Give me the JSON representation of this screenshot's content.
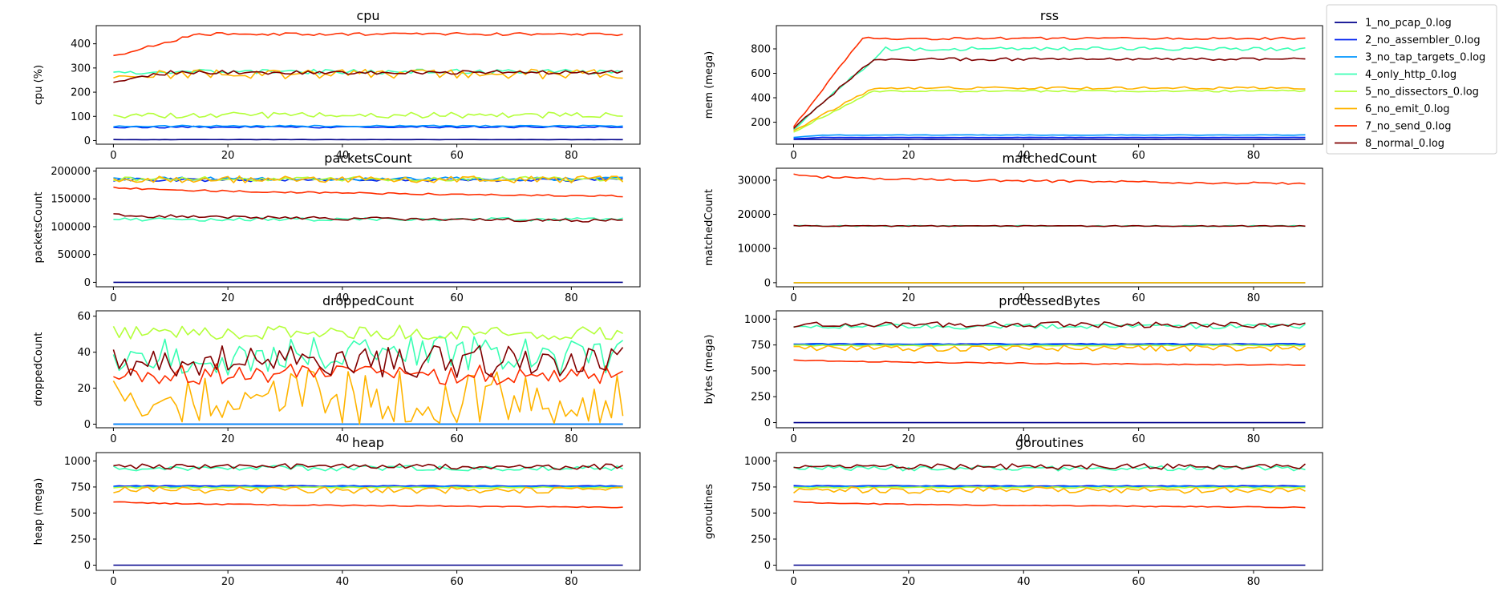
{
  "legend": {
    "placement": "upper-right-outside",
    "entries": [
      "1_no_pcap_0.log",
      "2_no_assembler_0.log",
      "3_no_tap_targets_0.log",
      "4_only_http_0.log",
      "5_no_dissectors_0.log",
      "6_no_emit_0.log",
      "7_no_send_0.log",
      "8_normal_0.log"
    ]
  },
  "colors": {
    "1_no_pcap_0.log": "#00008b",
    "2_no_assembler_0.log": "#0022f0",
    "3_no_tap_targets_0.log": "#0096ff",
    "4_only_http_0.log": "#3affb4",
    "5_no_dissectors_0.log": "#b4ff3a",
    "6_no_emit_0.log": "#ffb400",
    "7_no_send_0.log": "#ff2e00",
    "8_normal_0.log": "#800000"
  },
  "chart_data": [
    {
      "type": "line",
      "title": "cpu",
      "ylabel": "cpu (%)",
      "xlim": [
        -3,
        92
      ],
      "ylim": [
        -15,
        475
      ],
      "xticks": [
        0,
        20,
        40,
        60,
        80
      ],
      "yticks": [
        0,
        100,
        200,
        300,
        400
      ],
      "n_points": 90,
      "series": [
        {
          "name": "1_no_pcap_0.log",
          "kind": "flat",
          "level": 4,
          "noise": 0.5
        },
        {
          "name": "2_no_assembler_0.log",
          "kind": "flat",
          "level": 56,
          "noise": 4
        },
        {
          "name": "3_no_tap_targets_0.log",
          "kind": "flat",
          "level": 60,
          "noise": 3
        },
        {
          "name": "4_only_http_0.log",
          "kind": "flat",
          "level": 285,
          "noise": 10
        },
        {
          "name": "5_no_dissectors_0.log",
          "kind": "flat",
          "level": 105,
          "noise": 12
        },
        {
          "name": "6_no_emit_0.log",
          "kind": "flat",
          "level": 275,
          "noise": 20
        },
        {
          "name": "7_no_send_0.log",
          "kind": "ramp",
          "start": 350,
          "level": 440,
          "ramp": 15,
          "noise": 6
        },
        {
          "name": "8_normal_0.log",
          "kind": "ramp",
          "start": 245,
          "level": 282,
          "ramp": 10,
          "noise": 8
        }
      ]
    },
    {
      "type": "line",
      "title": "rss",
      "ylabel": "mem (mega)",
      "xlim": [
        -3,
        92
      ],
      "ylim": [
        20,
        990
      ],
      "xticks": [
        0,
        20,
        40,
        60,
        80
      ],
      "yticks": [
        200,
        400,
        600,
        800
      ],
      "n_points": 90,
      "series": [
        {
          "name": "1_no_pcap_0.log",
          "kind": "flat",
          "level": 60,
          "noise": 0.5
        },
        {
          "name": "2_no_assembler_0.log",
          "kind": "ramp",
          "start": 65,
          "level": 75,
          "ramp": 5,
          "noise": 1
        },
        {
          "name": "3_no_tap_targets_0.log",
          "kind": "ramp",
          "start": 75,
          "level": 95,
          "ramp": 5,
          "noise": 2
        },
        {
          "name": "4_only_http_0.log",
          "kind": "ramp",
          "start": 150,
          "level": 800,
          "ramp": 16,
          "noise": 15
        },
        {
          "name": "5_no_dissectors_0.log",
          "kind": "ramp",
          "start": 120,
          "level": 455,
          "ramp": 14,
          "noise": 8
        },
        {
          "name": "6_no_emit_0.log",
          "kind": "ramp",
          "start": 130,
          "level": 480,
          "ramp": 14,
          "noise": 10
        },
        {
          "name": "7_no_send_0.log",
          "kind": "ramp",
          "start": 165,
          "level": 885,
          "ramp": 12,
          "noise": 10
        },
        {
          "name": "8_normal_0.log",
          "kind": "ramp",
          "start": 160,
          "level": 715,
          "ramp": 14,
          "noise": 12
        }
      ]
    },
    {
      "type": "line",
      "title": "packetsCount",
      "ylabel": "packetsCount",
      "xlim": [
        -3,
        92
      ],
      "ylim": [
        -8000,
        205000
      ],
      "xticks": [
        0,
        20,
        40,
        60,
        80
      ],
      "yticks": [
        0,
        50000,
        100000,
        150000,
        200000
      ],
      "n_points": 90,
      "series": [
        {
          "name": "1_no_pcap_0.log",
          "kind": "flat",
          "level": 0,
          "noise": 0
        },
        {
          "name": "2_no_assembler_0.log",
          "kind": "flat",
          "level": 184000,
          "noise": 3000
        },
        {
          "name": "3_no_tap_targets_0.log",
          "kind": "flat",
          "level": 186000,
          "noise": 3000
        },
        {
          "name": "4_only_http_0.log",
          "kind": "flat",
          "level": 113000,
          "noise": 3000
        },
        {
          "name": "5_no_dissectors_0.log",
          "kind": "flat",
          "level": 186000,
          "noise": 4000
        },
        {
          "name": "6_no_emit_0.log",
          "kind": "flat",
          "level": 185000,
          "noise": 6000
        },
        {
          "name": "7_no_send_0.log",
          "kind": "trend",
          "start": 172000,
          "level": 155000,
          "noise": 1500
        },
        {
          "name": "8_normal_0.log",
          "kind": "trend",
          "start": 122000,
          "level": 111000,
          "noise": 3000
        }
      ]
    },
    {
      "type": "line",
      "title": "matchedCount",
      "ylabel": "matchedCount",
      "xlim": [
        -3,
        92
      ],
      "ylim": [
        -1200,
        33500
      ],
      "xticks": [
        0,
        20,
        40,
        60,
        80
      ],
      "yticks": [
        0,
        10000,
        20000,
        30000
      ],
      "n_points": 90,
      "series": [
        {
          "name": "1_no_pcap_0.log",
          "kind": "flat",
          "level": 0,
          "noise": 0
        },
        {
          "name": "2_no_assembler_0.log",
          "kind": "flat",
          "level": 0,
          "noise": 0
        },
        {
          "name": "3_no_tap_targets_0.log",
          "kind": "flat",
          "level": 0,
          "noise": 0
        },
        {
          "name": "4_only_http_0.log",
          "kind": "flat",
          "level": 16600,
          "noise": 150
        },
        {
          "name": "5_no_dissectors_0.log",
          "kind": "flat",
          "level": 0,
          "noise": 0
        },
        {
          "name": "6_no_emit_0.log",
          "kind": "flat",
          "level": 0,
          "noise": 0
        },
        {
          "name": "7_no_send_0.log",
          "kind": "trend",
          "start": 31500,
          "level": 29000,
          "noise": 350
        },
        {
          "name": "8_normal_0.log",
          "kind": "flat",
          "level": 16600,
          "noise": 150
        }
      ]
    },
    {
      "type": "line",
      "title": "droppedCount",
      "ylabel": "droppedCount",
      "xlim": [
        -3,
        92
      ],
      "ylim": [
        -2,
        63
      ],
      "xticks": [
        0,
        20,
        40,
        60,
        80
      ],
      "yticks": [
        0,
        20,
        40,
        60
      ],
      "n_points": 90,
      "series": [
        {
          "name": "1_no_pcap_0.log",
          "kind": "flat",
          "level": 0,
          "noise": 0
        },
        {
          "name": "2_no_assembler_0.log",
          "kind": "flat",
          "level": 0,
          "noise": 0
        },
        {
          "name": "3_no_tap_targets_0.log",
          "kind": "flat",
          "level": 0,
          "noise": 0
        },
        {
          "name": "4_only_http_0.log",
          "kind": "flat",
          "level": 38,
          "noise": 11,
          "min": 15,
          "max": 55
        },
        {
          "name": "5_no_dissectors_0.log",
          "kind": "flat",
          "level": 51,
          "noise": 4,
          "min": 42,
          "max": 60
        },
        {
          "name": "6_no_emit_0.log",
          "kind": "flat",
          "level": 15,
          "noise": 15,
          "min": 0,
          "max": 55
        },
        {
          "name": "7_no_send_0.log",
          "kind": "flat",
          "level": 28,
          "noise": 6,
          "min": 18,
          "max": 42
        },
        {
          "name": "8_normal_0.log",
          "kind": "flat",
          "level": 35,
          "noise": 9,
          "min": 18,
          "max": 52
        }
      ]
    },
    {
      "type": "line",
      "title": "processedBytes",
      "ylabel": "bytes (mega)",
      "xlim": [
        -3,
        92
      ],
      "ylim": [
        -50,
        1080
      ],
      "xticks": [
        0,
        20,
        40,
        60,
        80
      ],
      "yticks": [
        0,
        250,
        500,
        750,
        1000
      ],
      "n_points": 90,
      "series": [
        {
          "name": "1_no_pcap_0.log",
          "kind": "flat",
          "level": 0,
          "noise": 0
        },
        {
          "name": "2_no_assembler_0.log",
          "kind": "flat",
          "level": 760,
          "noise": 4
        },
        {
          "name": "3_no_tap_targets_0.log",
          "kind": "flat",
          "level": 752,
          "noise": 4
        },
        {
          "name": "4_only_http_0.log",
          "kind": "flat",
          "level": 930,
          "noise": 25
        },
        {
          "name": "5_no_dissectors_0.log",
          "kind": "flat",
          "level": 745,
          "noise": 6
        },
        {
          "name": "6_no_emit_0.log",
          "kind": "flat",
          "level": 720,
          "noise": 30
        },
        {
          "name": "7_no_send_0.log",
          "kind": "trend",
          "start": 610,
          "level": 555,
          "noise": 5
        },
        {
          "name": "8_normal_0.log",
          "kind": "flat",
          "level": 945,
          "noise": 28
        }
      ]
    },
    {
      "type": "line",
      "title": "heap",
      "ylabel": "heap (mega)",
      "xlim": [
        -3,
        92
      ],
      "ylim": [
        -50,
        1080
      ],
      "xticks": [
        0,
        20,
        40,
        60,
        80
      ],
      "yticks": [
        0,
        250,
        500,
        750,
        1000
      ],
      "n_points": 90,
      "series": [
        {
          "name": "1_no_pcap_0.log",
          "kind": "flat",
          "level": 0,
          "noise": 0
        },
        {
          "name": "2_no_assembler_0.log",
          "kind": "flat",
          "level": 760,
          "noise": 4
        },
        {
          "name": "3_no_tap_targets_0.log",
          "kind": "flat",
          "level": 752,
          "noise": 4
        },
        {
          "name": "4_only_http_0.log",
          "kind": "flat",
          "level": 930,
          "noise": 25
        },
        {
          "name": "5_no_dissectors_0.log",
          "kind": "flat",
          "level": 745,
          "noise": 6
        },
        {
          "name": "6_no_emit_0.log",
          "kind": "flat",
          "level": 720,
          "noise": 30
        },
        {
          "name": "7_no_send_0.log",
          "kind": "trend",
          "start": 610,
          "level": 555,
          "noise": 5
        },
        {
          "name": "8_normal_0.log",
          "kind": "flat",
          "level": 945,
          "noise": 28
        }
      ]
    },
    {
      "type": "line",
      "title": "goroutines",
      "ylabel": "goroutines",
      "xlim": [
        -3,
        92
      ],
      "ylim": [
        -50,
        1080
      ],
      "xticks": [
        0,
        20,
        40,
        60,
        80
      ],
      "yticks": [
        0,
        250,
        500,
        750,
        1000
      ],
      "n_points": 90,
      "series": [
        {
          "name": "1_no_pcap_0.log",
          "kind": "flat",
          "level": 0,
          "noise": 0
        },
        {
          "name": "2_no_assembler_0.log",
          "kind": "flat",
          "level": 760,
          "noise": 4
        },
        {
          "name": "3_no_tap_targets_0.log",
          "kind": "flat",
          "level": 752,
          "noise": 4
        },
        {
          "name": "4_only_http_0.log",
          "kind": "flat",
          "level": 930,
          "noise": 25
        },
        {
          "name": "5_no_dissectors_0.log",
          "kind": "flat",
          "level": 745,
          "noise": 6
        },
        {
          "name": "6_no_emit_0.log",
          "kind": "flat",
          "level": 720,
          "noise": 30
        },
        {
          "name": "7_no_send_0.log",
          "kind": "trend",
          "start": 610,
          "level": 555,
          "noise": 5
        },
        {
          "name": "8_normal_0.log",
          "kind": "flat",
          "level": 945,
          "noise": 28
        }
      ]
    }
  ]
}
